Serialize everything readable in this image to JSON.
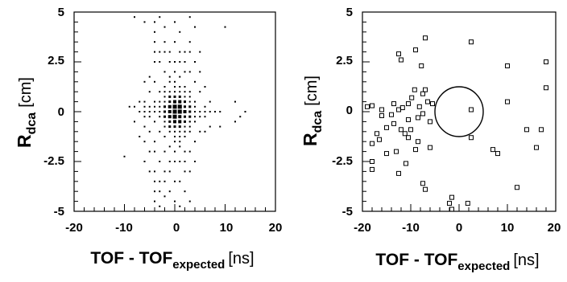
{
  "chart_data": [
    {
      "type": "scatter",
      "title": "",
      "xlabel": {
        "main": "TOF - TOF",
        "sub": "expected",
        "unit": "[ns]"
      },
      "ylabel": {
        "main": "R",
        "sub": "dca",
        "unit": "[cm]"
      },
      "xlim": [
        -20,
        20
      ],
      "ylim": [
        -5,
        5
      ],
      "x_ticks": [
        -20,
        -10,
        0,
        10,
        20
      ],
      "x_tick_labels": [
        "-20",
        "-10",
        "0",
        "10",
        "20"
      ],
      "y_ticks": [
        -5,
        -2.5,
        0,
        2.5,
        5
      ],
      "y_tick_labels": [
        "-5",
        "-2.5",
        "0",
        "2.5",
        "5"
      ],
      "grid": false,
      "marker": "box-density",
      "points": [
        [
          0,
          0,
          4
        ],
        [
          1,
          0,
          4
        ],
        [
          0,
          0.25,
          4
        ],
        [
          1,
          0.25,
          4
        ],
        [
          0,
          -0.25,
          4
        ],
        [
          1,
          -0.25,
          3
        ],
        [
          -1,
          0,
          3
        ],
        [
          2,
          0,
          3
        ],
        [
          0,
          0.5,
          3
        ],
        [
          1,
          0.5,
          3
        ],
        [
          0,
          -0.5,
          3
        ],
        [
          1,
          -0.5,
          3
        ],
        [
          -1,
          0.25,
          3
        ],
        [
          2,
          0.25,
          2
        ],
        [
          -1,
          -0.25,
          3
        ],
        [
          2,
          -0.25,
          2
        ],
        [
          -1,
          0.5,
          2
        ],
        [
          2,
          0.5,
          2
        ],
        [
          -1,
          -0.5,
          2
        ],
        [
          2,
          -0.5,
          2
        ],
        [
          -2,
          0,
          2
        ],
        [
          3,
          0,
          2
        ],
        [
          0,
          0.75,
          2
        ],
        [
          1,
          0.75,
          2
        ],
        [
          0,
          -0.75,
          2
        ],
        [
          1,
          -0.75,
          2
        ],
        [
          -2,
          0.25,
          2
        ],
        [
          -2,
          -0.25,
          2
        ],
        [
          3,
          0.25,
          2
        ],
        [
          3,
          -0.25,
          2
        ],
        [
          -1,
          0.75,
          2
        ],
        [
          2,
          0.75,
          1
        ],
        [
          -1,
          -0.75,
          2
        ],
        [
          2,
          -0.75,
          1
        ],
        [
          0,
          1,
          1
        ],
        [
          0,
          -1,
          1
        ],
        [
          -2,
          0.5,
          1
        ],
        [
          3,
          0.5,
          1
        ],
        [
          -2,
          -0.5,
          1
        ],
        [
          3,
          -0.5,
          1
        ],
        [
          -3,
          0,
          1
        ],
        [
          4,
          0,
          1
        ],
        [
          -3,
          0.25,
          1
        ],
        [
          4,
          0.25,
          1
        ],
        [
          -3,
          -0.25,
          1
        ],
        [
          4,
          -0.25,
          1
        ],
        [
          1,
          1,
          1
        ],
        [
          1,
          -1,
          1
        ],
        [
          -1,
          1,
          1
        ],
        [
          2,
          1,
          1
        ],
        [
          -1,
          -1,
          1
        ],
        [
          2,
          -1,
          1
        ],
        [
          -2,
          0.75,
          1
        ],
        [
          3,
          0.75,
          1
        ],
        [
          -2,
          -0.75,
          1
        ],
        [
          3,
          -0.75,
          1
        ],
        [
          0,
          1.25,
          1
        ],
        [
          1,
          1.25,
          1
        ],
        [
          0,
          -1.25,
          1
        ],
        [
          1,
          -1.25,
          1
        ],
        [
          -4,
          0,
          1
        ],
        [
          5,
          0,
          1
        ],
        [
          -4,
          0.25,
          1
        ],
        [
          5,
          -0.25,
          1
        ],
        [
          0,
          1.5,
          1
        ],
        [
          0,
          -1.5,
          1
        ],
        [
          -1,
          1.5,
          1
        ],
        [
          1,
          -1.5,
          1
        ],
        [
          -3,
          0.5,
          1
        ],
        [
          3,
          -0.5,
          1
        ],
        [
          -2,
          1,
          1
        ],
        [
          2,
          -1,
          1
        ],
        [
          -4,
          0.5,
          1
        ],
        [
          4,
          0.5,
          1
        ],
        [
          -4,
          -0.5,
          1
        ],
        [
          4,
          -0.5,
          1
        ],
        [
          -5,
          0,
          1
        ],
        [
          6,
          0,
          1
        ],
        [
          -5,
          0.25,
          1
        ],
        [
          6,
          0.25,
          1
        ],
        [
          -5,
          -0.25,
          1
        ],
        [
          6,
          -0.25,
          1
        ],
        [
          -6,
          0,
          1
        ],
        [
          7,
          0,
          1
        ],
        [
          -6,
          0.25,
          1
        ],
        [
          -6,
          -0.25,
          1
        ],
        [
          -7,
          0,
          1
        ],
        [
          8,
          0,
          1
        ],
        [
          -8,
          0.25,
          1
        ],
        [
          9,
          0,
          1
        ],
        [
          -3,
          1,
          1
        ],
        [
          -3,
          -1,
          1
        ],
        [
          3,
          1,
          1
        ],
        [
          3,
          -1,
          1
        ],
        [
          -2,
          1.25,
          1
        ],
        [
          2,
          1.25,
          1
        ],
        [
          -2,
          -1.25,
          1
        ],
        [
          2,
          -1.25,
          1
        ],
        [
          -1,
          1.75,
          1
        ],
        [
          1,
          1.75,
          1
        ],
        [
          -1,
          -1.75,
          1
        ],
        [
          1,
          -1.75,
          1
        ],
        [
          0,
          2,
          1
        ],
        [
          0,
          -2,
          1
        ],
        [
          -2,
          2,
          1
        ],
        [
          2,
          2,
          1
        ],
        [
          -2,
          -2,
          1
        ],
        [
          2,
          -2,
          1
        ],
        [
          -4,
          2.5,
          1
        ],
        [
          -4,
          3,
          1
        ],
        [
          -4,
          3.5,
          1
        ],
        [
          -4,
          4,
          1
        ],
        [
          -4,
          4.5,
          1
        ],
        [
          -4,
          1.5,
          1
        ],
        [
          -4,
          -1.5,
          1
        ],
        [
          -4,
          -2,
          1
        ],
        [
          -4,
          -3,
          1
        ],
        [
          -4,
          -3.5,
          1
        ],
        [
          -4,
          -4,
          1
        ],
        [
          -4,
          -4.5,
          1
        ],
        [
          -3,
          2.5,
          1
        ],
        [
          -3,
          3,
          1
        ],
        [
          -3,
          -2.5,
          1
        ],
        [
          -3,
          -3.5,
          1
        ],
        [
          -3,
          -4,
          1
        ],
        [
          -2,
          3,
          1
        ],
        [
          -2,
          3.5,
          1
        ],
        [
          -2,
          -3,
          1
        ],
        [
          -2,
          -3.5,
          1
        ],
        [
          -1,
          2.5,
          1
        ],
        [
          -1,
          3,
          1
        ],
        [
          -1,
          -2.5,
          1
        ],
        [
          -1,
          -3,
          1
        ],
        [
          -1,
          -4,
          1
        ],
        [
          0,
          2.5,
          1
        ],
        [
          0,
          3.5,
          1
        ],
        [
          0,
          4.5,
          1
        ],
        [
          0,
          -2.5,
          1
        ],
        [
          0,
          -3.5,
          1
        ],
        [
          0,
          -4.5,
          1
        ],
        [
          1,
          2.5,
          1
        ],
        [
          1,
          3,
          1
        ],
        [
          1,
          -2.5,
          1
        ],
        [
          1,
          -3.5,
          1
        ],
        [
          2,
          2.5,
          1
        ],
        [
          2,
          3,
          1
        ],
        [
          2,
          -2.5,
          1
        ],
        [
          2,
          -3,
          1
        ],
        [
          2,
          -4,
          1
        ],
        [
          3,
          2,
          1
        ],
        [
          3,
          3,
          1
        ],
        [
          3,
          3.5,
          1
        ],
        [
          3,
          -2,
          1
        ],
        [
          3,
          -3,
          1
        ],
        [
          3,
          -4.5,
          1
        ],
        [
          4,
          1.5,
          1
        ],
        [
          4,
          2.5,
          1
        ],
        [
          4,
          -1.5,
          1
        ],
        [
          4,
          -2.5,
          1
        ],
        [
          5,
          1,
          1
        ],
        [
          5,
          -1,
          1
        ],
        [
          5,
          2,
          1
        ],
        [
          6,
          -1,
          1
        ],
        [
          7,
          0.5,
          1
        ],
        [
          -6,
          0.5,
          1
        ],
        [
          -6,
          -0.75,
          1
        ],
        [
          -5,
          1,
          1
        ],
        [
          -5,
          -1,
          1
        ],
        [
          -7,
          0.5,
          1
        ],
        [
          -8,
          -0.5,
          1
        ],
        [
          -9,
          0.25,
          1
        ],
        [
          -5,
          -2,
          1
        ],
        [
          -6,
          1.5,
          1
        ],
        [
          -6,
          4.5,
          1
        ],
        [
          -8,
          4.75,
          1
        ],
        [
          -6,
          -1.5,
          1
        ],
        [
          -6,
          -2.5,
          1
        ],
        [
          -10,
          -2.25,
          1
        ],
        [
          12,
          -0.5,
          1
        ],
        [
          12,
          0.5,
          1
        ],
        [
          13,
          -0.25,
          1
        ],
        [
          14,
          0,
          1
        ],
        [
          10,
          4.25,
          1
        ],
        [
          -5,
          1.75,
          1
        ],
        [
          -5,
          -3,
          1
        ],
        [
          5,
          3,
          1
        ],
        [
          4,
          4.25,
          1
        ],
        [
          -3,
          4.75,
          1
        ],
        [
          3,
          4.75,
          1
        ],
        [
          -3,
          -4.75,
          1
        ],
        [
          1,
          -4.75,
          1
        ],
        [
          -2,
          -4.25,
          1
        ],
        [
          -7,
          -1.25,
          1
        ],
        [
          6,
          1.25,
          1
        ],
        [
          7,
          -0.75,
          1
        ],
        [
          9,
          -0.75,
          1
        ],
        [
          -2,
          4.25,
          1
        ],
        [
          1,
          4,
          1
        ]
      ]
    },
    {
      "type": "scatter",
      "title": "",
      "xlabel": {
        "main": "TOF - TOF",
        "sub": "expected",
        "unit": "[ns]"
      },
      "ylabel": {
        "main": "R",
        "sub": "dca",
        "unit": "[cm]"
      },
      "xlim": [
        -20,
        20
      ],
      "ylim": [
        -5,
        5
      ],
      "x_ticks": [
        -20,
        -10,
        0,
        10,
        20
      ],
      "x_tick_labels": [
        "-20",
        "-10",
        "0",
        "10",
        "20"
      ],
      "y_ticks": [
        -5,
        -2.5,
        0,
        2.5,
        5
      ],
      "y_tick_labels": [
        "-5",
        "-2.5",
        "0",
        "2.5",
        "5"
      ],
      "grid": false,
      "marker": "open-square",
      "cut_ellipse": {
        "cx": 0,
        "cy": 0,
        "rx": 5,
        "ry": 1.25
      },
      "points": [
        [
          -7,
          3.7
        ],
        [
          -12.5,
          2.9
        ],
        [
          -9,
          3.1
        ],
        [
          2.5,
          3.5
        ],
        [
          -12,
          2.6
        ],
        [
          -7.8,
          2.3
        ],
        [
          10,
          2.3
        ],
        [
          18,
          2.5
        ],
        [
          -7,
          1.1
        ],
        [
          -7.5,
          0.9
        ],
        [
          -9.2,
          1.1
        ],
        [
          -9.8,
          0.7
        ],
        [
          -10.5,
          0.4
        ],
        [
          -13.5,
          0.4
        ],
        [
          -18,
          0.3
        ],
        [
          -19,
          0.25
        ],
        [
          -5.5,
          0.4
        ],
        [
          -6.5,
          0.5
        ],
        [
          -8.2,
          0.25
        ],
        [
          -11.7,
          0.2
        ],
        [
          -12.5,
          0.1
        ],
        [
          -16,
          0.1
        ],
        [
          -7.5,
          -0.1
        ],
        [
          -8.5,
          -0.3
        ],
        [
          -10.5,
          -0.4
        ],
        [
          -14,
          -0.15
        ],
        [
          -16,
          -0.2
        ],
        [
          -6,
          -0.5
        ],
        [
          -10,
          -0.9
        ],
        [
          -12,
          -0.9
        ],
        [
          -13.5,
          -0.6
        ],
        [
          -15,
          -0.8
        ],
        [
          -17,
          -1.1
        ],
        [
          -18,
          -1.6
        ],
        [
          -6,
          -1.8
        ],
        [
          -8.5,
          -1.5
        ],
        [
          -10.5,
          -1.3
        ],
        [
          -11.2,
          -1.1
        ],
        [
          -16.5,
          -1.4
        ],
        [
          -9,
          -1.9
        ],
        [
          -13,
          -2.0
        ],
        [
          -15,
          -2.1
        ],
        [
          -18,
          -2.5
        ],
        [
          -18,
          -2.9
        ],
        [
          -11,
          -2.6
        ],
        [
          -12.5,
          -3.1
        ],
        [
          -7.5,
          -3.6
        ],
        [
          -7,
          -3.9
        ],
        [
          -2,
          -4.6
        ],
        [
          -1.5,
          -4.3
        ],
        [
          -1.5,
          -4.9
        ],
        [
          1.8,
          -4.6
        ],
        [
          2.5,
          -1.3
        ],
        [
          2.5,
          0.1
        ],
        [
          10,
          0.5
        ],
        [
          18,
          1.2
        ],
        [
          14,
          -0.9
        ],
        [
          17,
          -0.9
        ],
        [
          16,
          -1.8
        ],
        [
          7,
          -1.9
        ],
        [
          8,
          -2.1
        ],
        [
          12,
          -3.8
        ]
      ]
    }
  ]
}
